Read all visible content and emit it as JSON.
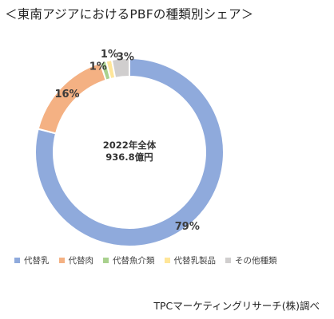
{
  "title": "＜東南アジアにおけるPBFの種類別シェア＞",
  "source": "TPCマーケティングリサーチ(株)調べ",
  "chart_data": {
    "type": "pie",
    "center_label": [
      "2022年全体",
      "936.8億円"
    ],
    "categories": [
      "代替乳",
      "代替肉",
      "代替魚介類",
      "代替乳製品",
      "その他種類"
    ],
    "values": [
      79,
      16,
      1,
      1,
      3
    ],
    "data_labels": [
      "79%",
      "16%",
      "1%",
      "1%",
      "3%"
    ],
    "colors": [
      "#8faadc",
      "#f4b183",
      "#a9d18e",
      "#ffe699",
      "#d0cece"
    ],
    "legend_position": "bottom"
  }
}
